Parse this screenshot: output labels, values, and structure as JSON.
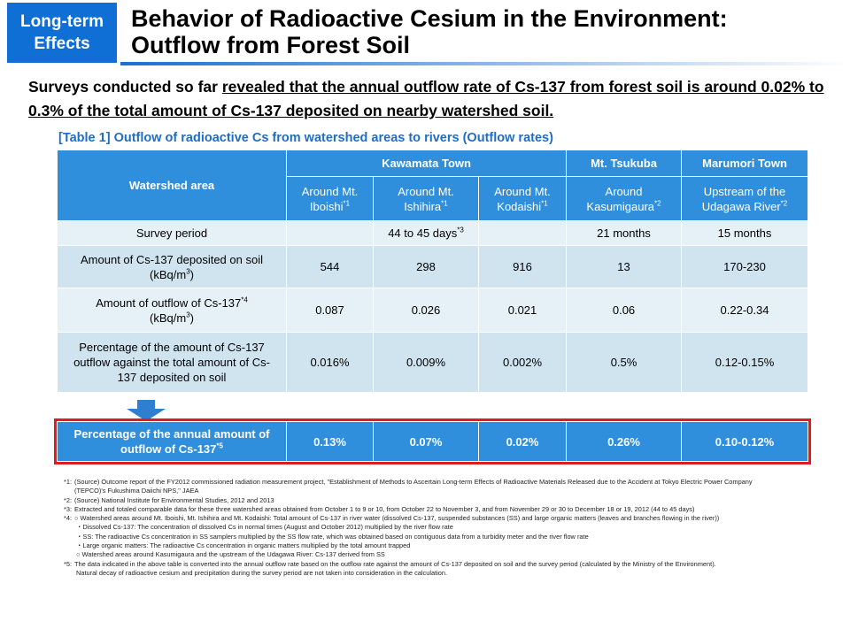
{
  "badge": {
    "line1": "Long-term",
    "line2": "Effects"
  },
  "title": {
    "line1": "Behavior of Radioactive Cesium in the Environment:",
    "line2": "Outflow from Forest Soil"
  },
  "intro": {
    "prefix": "Surveys conducted so far ",
    "underlined": "revealed that the annual outflow rate of Cs-137 from forest soil is around 0.02% to 0.3% of the total amount of Cs-137 deposited on nearby watershed soil."
  },
  "table_caption": "[Table 1] Outflow of radioactive Cs from watershed areas to rivers (Outflow rates)",
  "table": {
    "watershed_label": "Watershed area",
    "groups": [
      "Kawamata Town",
      "Mt. Tsukuba",
      "Marumori Town"
    ],
    "areas": [
      {
        "name": "Around Mt. Iboishi",
        "sup": "*1"
      },
      {
        "name": "Around Mt. Ishihira",
        "sup": "*1"
      },
      {
        "name": "Around Mt. Kodaishi",
        "sup": "*1"
      },
      {
        "name": "Around Kasumigaura",
        "sup": "*2"
      },
      {
        "name": "Upstream of the Udagawa River",
        "sup": "*2"
      }
    ],
    "survey_period": {
      "label": "Survey period",
      "kawamata": "44 to 45 days",
      "kawamata_sup": "*3",
      "tsukuba": "21 months",
      "marumori": "15 months"
    },
    "deposited": {
      "label": "Amount of Cs-137 deposited on soil",
      "unit": "(kBq/m",
      "unit_sup": "3",
      "unit_end": ")",
      "values": [
        "544",
        "298",
        "916",
        "13",
        "170-230"
      ]
    },
    "outflow": {
      "label": "Amount of outflow of Cs-137",
      "label_sup": "*4",
      "unit": "(kBq/m",
      "unit_sup": "3",
      "unit_end": ")",
      "values": [
        "0.087",
        "0.026",
        "0.021",
        "0.06",
        "0.22-0.34"
      ]
    },
    "percentage": {
      "label": "Percentage of the amount of Cs-137 outflow against the total amount of Cs-137 deposited on soil",
      "values": [
        "0.016%",
        "0.009%",
        "0.002%",
        "0.5%",
        "0.12-0.15%"
      ]
    }
  },
  "result": {
    "label": "Percentage of the annual amount of outflow of Cs-137",
    "label_sup": "*5",
    "values": [
      "0.13%",
      "0.07%",
      "0.02%",
      "0.26%",
      "0.10-0.12%"
    ]
  },
  "notes": [
    {
      "key": "*1:",
      "text": "(Source) Outcome report of the FY2012 commissioned radiation measurement project, \"Establishment of Methods to Ascertain Long-term Effects of Radioactive Materials Released due to the Accident at Tokyo Electric Power Company (TEPCO)'s Fukushima Daiichi NPS,\" JAEA"
    },
    {
      "key": "*2:",
      "text": "(Source) National Institute for Environmental Studies, 2012 and 2013"
    },
    {
      "key": "*3:",
      "text": "Extracted and totaled comparable data for these three watershed areas obtained from October 1 to 9 or 10, from October 22 to November 3, and from November 29 or 30 to December 18 or 19, 2012 (44 to 45 days)"
    },
    {
      "key": "*4:",
      "text": "○ Watershed areas around Mt. Iboishi, Mt. Ishihira and Mt. Kodaishi: Total amount of Cs-137 in river water (dissolved Cs-137, suspended substances (SS) and large organic matters (leaves and branches flowing in the river))"
    }
  ],
  "notes4_sub": [
    "・Dissolved Cs-137: The concentration of dissolved Cs in normal times (August and October 2012) multiplied by the river flow rate",
    "・SS: The radioactive Cs concentration in SS samplers multiplied by the SS flow rate, which was obtained based on contiguous data from a turbidity meter and the river flow rate",
    "・Large organic matters: The radioactive Cs concentration in organic matters multiplied by the total amount trapped",
    "○ Watershed areas around Kasumigaura and the upstream of the Udagawa River: Cs-137 derived from SS"
  ],
  "note5": {
    "key": "*5:",
    "text": "The data indicated in the above table is converted into the annual outflow rate based on the outflow rate against the amount of Cs-137 deposited on soil and the survey period (calculated by the Ministry of the Environment).",
    "text2": "Natural decay of radioactive cesium and precipitation during the survey period are not taken into consideration in the calculation."
  },
  "colors": {
    "badge": "#0f6fd4",
    "header": "#2f8fdc",
    "caption": "#1f6ec4",
    "highlight_border": "#e11b22",
    "row_light": "#e6f0f7",
    "row_dark": "#cfe4ef"
  }
}
